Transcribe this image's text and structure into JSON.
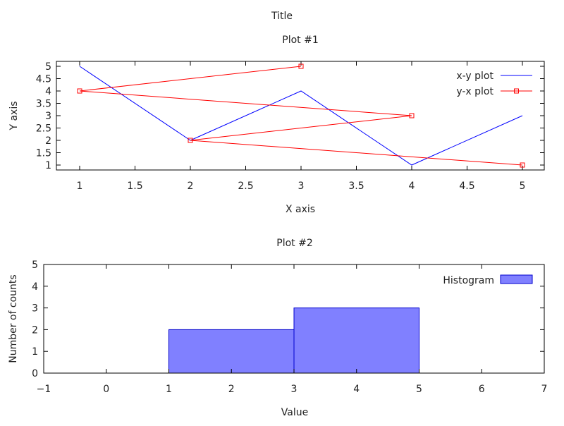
{
  "title": "Title",
  "chart_data": [
    {
      "type": "line",
      "title": "Plot #1",
      "xlabel": "X axis",
      "ylabel": "Y axis",
      "xlim": [
        0.8,
        5.2
      ],
      "ylim": [
        0.8,
        5.2
      ],
      "xticks": [
        "1",
        "1.5",
        "2",
        "2.5",
        "3",
        "3.5",
        "4",
        "4.5",
        "5"
      ],
      "yticks": [
        "1",
        "1.5",
        "2",
        "2.5",
        "3",
        "3.5",
        "4",
        "4.5",
        "5"
      ],
      "legend_position": "top-right",
      "grid": false,
      "series": [
        {
          "name": "x-y plot",
          "color": "#0000ff",
          "marker": "none",
          "x": [
            1,
            2,
            3,
            4,
            5
          ],
          "y": [
            5,
            2,
            4,
            1,
            3
          ]
        },
        {
          "name": "y-x plot",
          "color": "#ff0000",
          "marker": "square",
          "x": [
            5,
            2,
            4,
            1,
            3
          ],
          "y": [
            1,
            2,
            3,
            4,
            5
          ]
        }
      ]
    },
    {
      "type": "bar",
      "title": "Plot #2",
      "xlabel": "Value",
      "ylabel": "Number of counts",
      "xlim": [
        -1,
        7
      ],
      "ylim": [
        0,
        5
      ],
      "xticks": [
        "−1",
        "0",
        "1",
        "2",
        "3",
        "4",
        "5",
        "6",
        "7"
      ],
      "yticks": [
        "0",
        "1",
        "2",
        "3",
        "4",
        "5"
      ],
      "legend_position": "top-right",
      "grid": false,
      "series": [
        {
          "name": "Histogram",
          "fill": "#8080ff",
          "edge": "#0000cc",
          "bins": [
            {
              "from": 1,
              "to": 3,
              "count": 2
            },
            {
              "from": 3,
              "to": 5,
              "count": 3
            }
          ]
        }
      ]
    }
  ]
}
